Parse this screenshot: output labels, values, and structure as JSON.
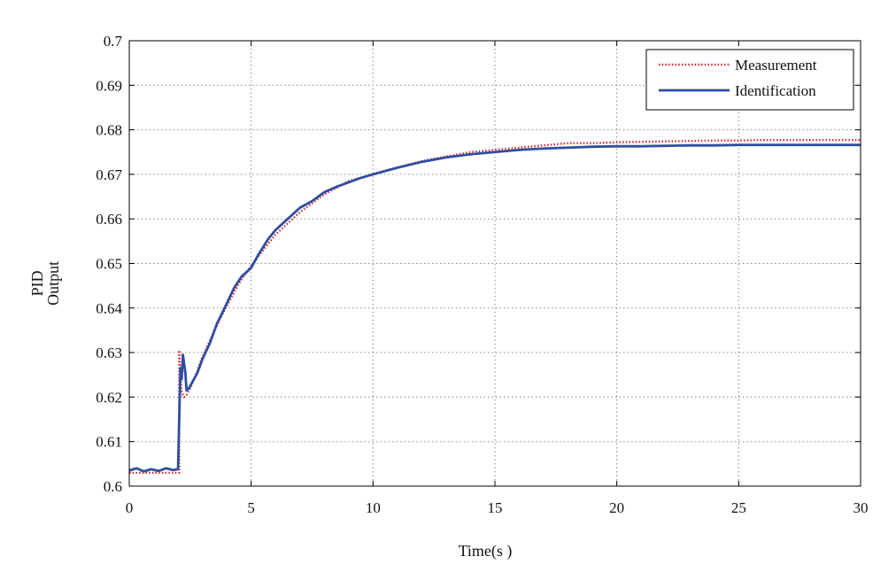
{
  "chart_data": {
    "type": "line",
    "title": "",
    "xlabel": "Time(s )",
    "ylabel_lines": [
      "PID",
      "Output"
    ],
    "xlim": [
      0,
      30
    ],
    "ylim": [
      0.6,
      0.7
    ],
    "xticks": [
      0,
      5,
      10,
      15,
      20,
      25,
      30
    ],
    "yticks": [
      0.6,
      0.61,
      0.62,
      0.63,
      0.64,
      0.65,
      0.66,
      0.67,
      0.68,
      0.69,
      0.7
    ],
    "ytick_labels": [
      "0.6",
      "0.61",
      "0.62",
      "0.63",
      "0.64",
      "0.65",
      "0.66",
      "0.67",
      "0.68",
      "0.69",
      "0.7"
    ],
    "grid": true,
    "legend_position": "top-right",
    "series": [
      {
        "name": "Measurement",
        "color": "#d42a2a",
        "style": "dotted",
        "x": [
          0,
          2.05,
          2.05,
          2.08,
          2.15,
          2.25,
          2.35,
          2.5,
          2.7,
          3.0,
          3.5,
          4.0,
          4.5,
          5.0,
          5.5,
          6.0,
          7.0,
          8.0,
          9.0,
          10.0,
          11.0,
          12.0,
          13.0,
          14.0,
          15.0,
          16.0,
          17.0,
          18.0,
          19.0,
          20.0,
          21.0,
          22.0,
          23.0,
          24.0,
          25.0,
          26.0,
          27.0,
          28.0,
          29.0,
          30.0
        ],
        "y": [
          0.603,
          0.603,
          0.6305,
          0.626,
          0.621,
          0.62,
          0.6205,
          0.622,
          0.6245,
          0.629,
          0.635,
          0.6405,
          0.6455,
          0.6495,
          0.653,
          0.6565,
          0.6615,
          0.6655,
          0.6685,
          0.67,
          0.6715,
          0.673,
          0.674,
          0.675,
          0.6755,
          0.676,
          0.6765,
          0.677,
          0.677,
          0.6772,
          0.6773,
          0.6774,
          0.6775,
          0.6776,
          0.6776,
          0.6777,
          0.6777,
          0.6777,
          0.6777,
          0.6777
        ]
      },
      {
        "name": "Identification",
        "color": "#2f4ea0",
        "style": "solid",
        "x": [
          0,
          0.3,
          0.6,
          0.9,
          1.2,
          1.5,
          1.8,
          2.0,
          2.05,
          2.1,
          2.15,
          2.2,
          2.3,
          2.35,
          2.45,
          2.6,
          2.8,
          3.0,
          3.3,
          3.6,
          4.0,
          4.3,
          4.6,
          5.0,
          5.3,
          5.7,
          6.0,
          6.5,
          7.0,
          7.5,
          8.0,
          8.5,
          9.0,
          9.5,
          10.0,
          11.0,
          12.0,
          13.0,
          14.0,
          15.0,
          16.0,
          17.0,
          18.0,
          19.0,
          20.0,
          21.0,
          22.0,
          23.0,
          24.0,
          25.0,
          26.0,
          27.0,
          28.0,
          29.0,
          30.0
        ],
        "y": [
          0.6035,
          0.604,
          0.6033,
          0.6038,
          0.6034,
          0.604,
          0.6036,
          0.6038,
          0.6155,
          0.6265,
          0.624,
          0.6295,
          0.6255,
          0.6215,
          0.622,
          0.6235,
          0.6255,
          0.6285,
          0.632,
          0.6365,
          0.641,
          0.6445,
          0.647,
          0.649,
          0.652,
          0.6555,
          0.6575,
          0.66,
          0.6625,
          0.664,
          0.666,
          0.6672,
          0.6682,
          0.6692,
          0.67,
          0.6715,
          0.6728,
          0.6738,
          0.6745,
          0.675,
          0.6755,
          0.6758,
          0.676,
          0.6762,
          0.6763,
          0.6763,
          0.6764,
          0.6765,
          0.6765,
          0.6766,
          0.6766,
          0.6766,
          0.6766,
          0.6766,
          0.6766
        ]
      }
    ]
  }
}
